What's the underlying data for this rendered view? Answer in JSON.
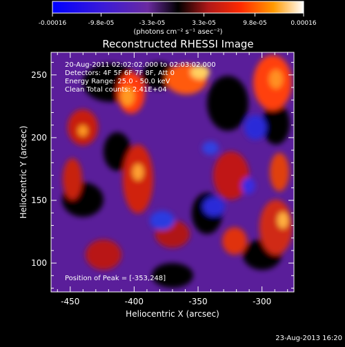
{
  "colorbar": {
    "tick_labels": [
      "-0.00016",
      "-9.8e-05",
      "-3.3e-05",
      "3.3e-05",
      "9.8e-05",
      "0.00016"
    ],
    "unit_label": "(photons cm⁻² s⁻¹ asec⁻²)",
    "range": [
      -0.00016,
      0.00016
    ]
  },
  "footer": {
    "timestamp": "23-Aug-2013 16:20"
  },
  "chart_data": {
    "type": "heatmap",
    "title": "Reconstructed RHESSI Image",
    "xlabel": "Heliocentric X (arcsec)",
    "ylabel": "Heliocentric Y (arcsec)",
    "xlim": [
      -465,
      -275
    ],
    "ylim": [
      77,
      268
    ],
    "x_ticks": [
      -450,
      -400,
      -350,
      -300
    ],
    "y_ticks": [
      100,
      150,
      200,
      250
    ],
    "x_tick_labels": [
      "-450",
      "-400",
      "-350",
      "-300"
    ],
    "y_tick_labels": [
      "100",
      "150",
      "200",
      "250"
    ],
    "annotations": [
      "20-Aug-2011 02:02:02.000 to 02:03:02.000",
      "Detectors: 4F 5F 6F 7F 8F, Att 0",
      "Energy Range: 25.0 - 50.0 keV",
      "Clean     Total counts: 2.41E+04"
    ],
    "peak_label": "Position of Peak = [-353,248]",
    "peak": [
      -353,
      248
    ],
    "value_range": [
      -0.00016,
      0.00016
    ]
  }
}
